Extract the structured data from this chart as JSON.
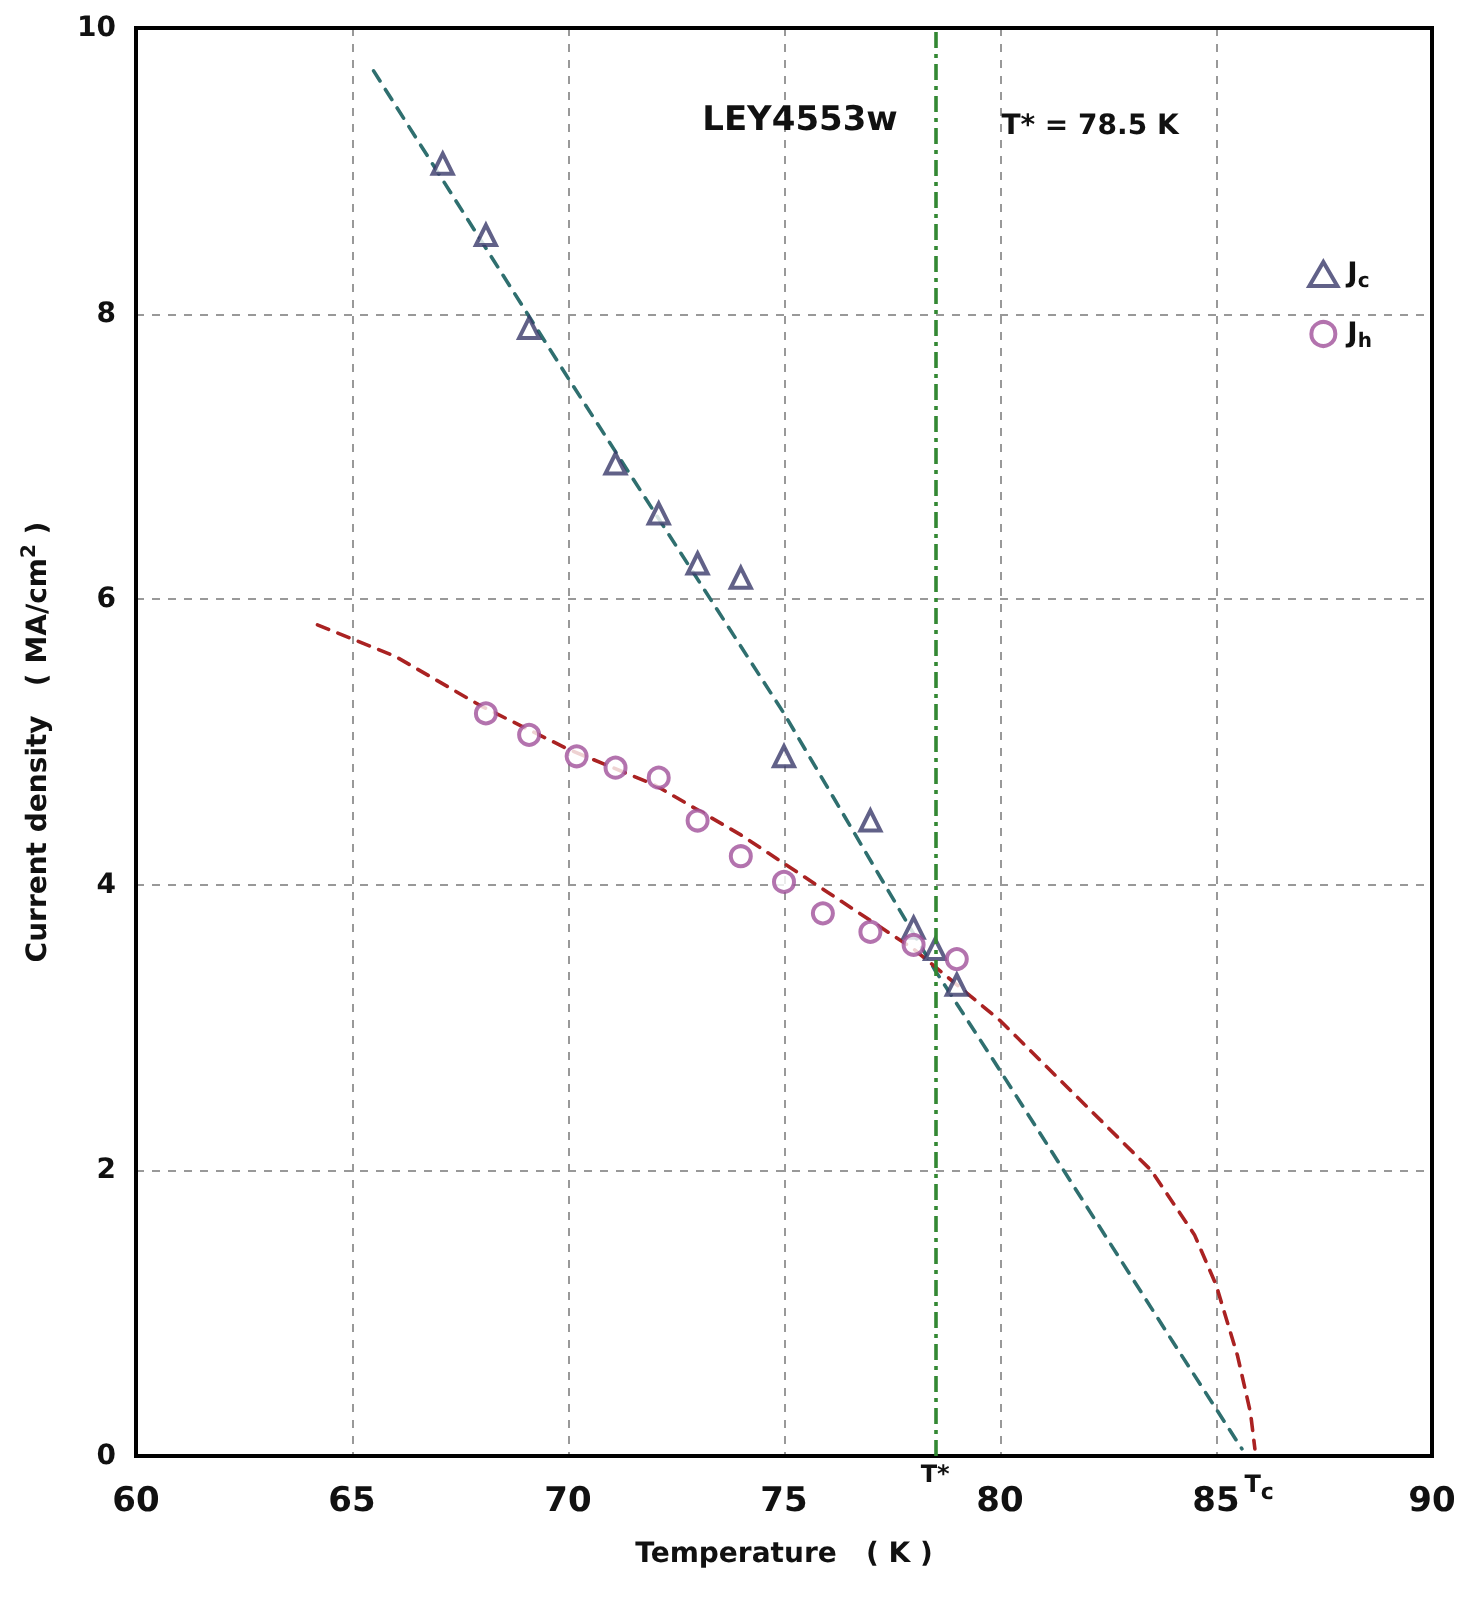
{
  "chart_data": {
    "type": "scatter",
    "xlabel": "Temperature   ( K )",
    "ylabel": "Current density   ( MA/cm$^{2}$ )",
    "xlim": [
      60,
      90
    ],
    "xticks": [
      60,
      65,
      70,
      75,
      80,
      85,
      90
    ],
    "ylim": [
      0,
      10
    ],
    "yticks": [
      0,
      2,
      4,
      6,
      8,
      10
    ],
    "grid": true,
    "legend": "top right",
    "series": [
      {
        "name": "J$_{c}$",
        "color": "#3a3a6a",
        "marker": "triangle",
        "x": [
          67.1,
          68.1,
          69.1,
          71.1,
          72.1,
          73.0,
          74.0,
          75.0,
          77.0,
          78.0,
          78.5,
          79.0
        ],
        "values": [
          9.05,
          8.55,
          7.9,
          6.95,
          6.6,
          6.25,
          6.15,
          4.9,
          4.45,
          3.7,
          3.55,
          3.3
        ]
      },
      {
        "name": "J$_{h}$",
        "color": "#a0509a",
        "marker": "circle",
        "x": [
          68.1,
          69.1,
          70.2,
          71.1,
          72.1,
          73.0,
          74.0,
          75.0,
          75.9,
          77.0,
          78.0,
          79.0
        ],
        "values": [
          5.2,
          5.05,
          4.9,
          4.82,
          4.75,
          4.45,
          4.2,
          4.02,
          3.8,
          3.67,
          3.58,
          3.48
        ]
      },
      {
        "type": "line",
        "color": "#2f6f6f",
        "marker": "none",
        "line_style": "dashed",
        "x": [
          65.5,
          70,
          75,
          78.5,
          80,
          82,
          84,
          85.6
        ],
        "values": [
          9.7,
          7.55,
          5.2,
          3.4,
          2.7,
          1.75,
          0.8,
          0.05
        ]
      },
      {
        "type": "line",
        "color": "#aa2222",
        "marker": "none",
        "line_style": "dashed",
        "x": [
          64.2,
          66,
          68,
          70,
          72,
          74,
          76,
          78,
          80,
          82,
          83.5,
          84.5,
          85,
          85.5,
          85.8,
          85.9
        ],
        "values": [
          5.82,
          5.6,
          5.25,
          4.95,
          4.7,
          4.35,
          3.95,
          3.55,
          3.05,
          2.45,
          2.0,
          1.55,
          1.2,
          0.7,
          0.3,
          0.05
        ]
      }
    ],
    "ref_lines": [
      {
        "axis": "x",
        "value": 78.5,
        "label": "T*",
        "color": "#338833",
        "line_style": "dashed"
      }
    ],
    "annotations": [
      "LEY4553w",
      "T* = 78.5 K",
      {
        "text": "T$_{c}$",
        "x": 86,
        "y": 0
      }
    ]
  }
}
